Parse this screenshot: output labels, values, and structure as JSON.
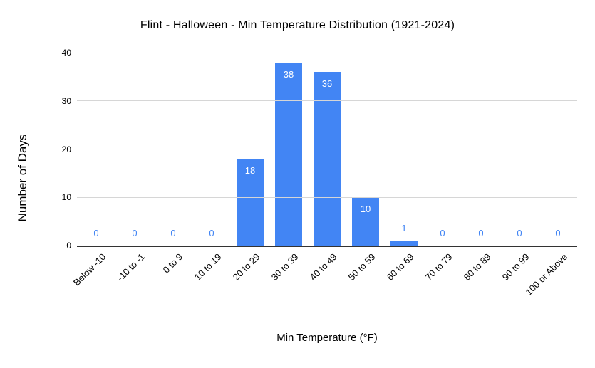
{
  "chart_data": {
    "type": "bar",
    "title": "Flint - Halloween - Min Temperature Distribution (1921-2024)",
    "xlabel": "Min Temperature (°F)",
    "ylabel": "Number of Days",
    "categories": [
      "Below -10",
      "-10 to -1",
      "0 to 9",
      "10 to 19",
      "20 to 29",
      "30 to 39",
      "40 to 49",
      "50 to 59",
      "60 to 69",
      "70 to 79",
      "80 to 89",
      "90 to 99",
      "100 or Above"
    ],
    "values": [
      0,
      0,
      0,
      0,
      18,
      38,
      36,
      10,
      1,
      0,
      0,
      0,
      0
    ],
    "ylim": [
      0,
      40
    ],
    "yticks": [
      0,
      10,
      20,
      30,
      40
    ],
    "grid": true,
    "legend": "none",
    "bar_color": "#4285F4",
    "inside_label_color": "#ffffff",
    "outside_label_color": "#4285F4"
  }
}
